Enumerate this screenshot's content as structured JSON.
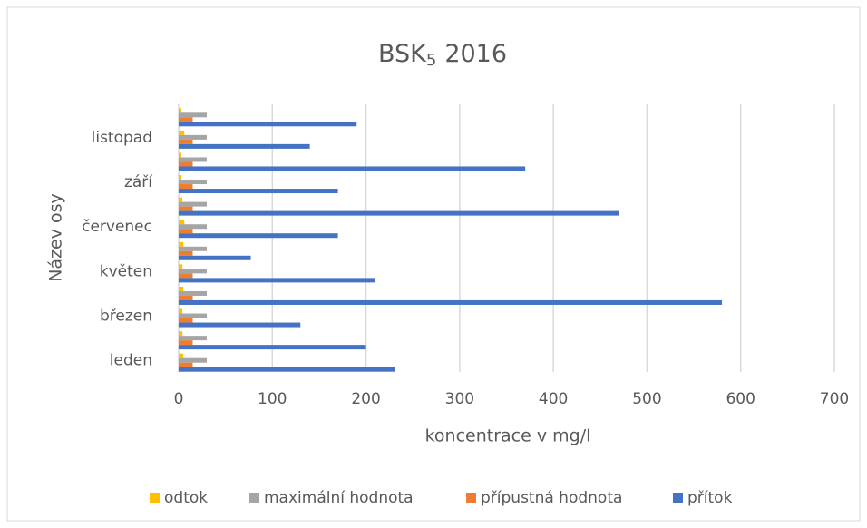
{
  "chart_data": {
    "type": "hbar",
    "title": "BSK",
    "title_subscript": "5",
    "title_suffix": "2016",
    "x_label": "koncentrace v mg/l",
    "y_label": "Název osy",
    "categories": [
      "leden",
      null,
      "březen",
      null,
      "květen",
      null,
      "červenec",
      null,
      "září",
      null,
      "listopad",
      null
    ],
    "series": [
      {
        "name": "odtok",
        "color": "#ffc000",
        "values": [
          5,
          4,
          4,
          5,
          4,
          5,
          6,
          4,
          3,
          3,
          6,
          3
        ]
      },
      {
        "name": "maximální hodnota",
        "color": "#a5a5a5",
        "values": [
          30,
          30,
          30,
          30,
          30,
          30,
          30,
          30,
          30,
          30,
          30,
          30
        ]
      },
      {
        "name": "přípustná hodnota",
        "color": "#ed7d31",
        "values": [
          15,
          15,
          15,
          15,
          15,
          15,
          15,
          15,
          15,
          15,
          15,
          15
        ]
      },
      {
        "name": "přítok",
        "color": "#4472c4",
        "values": [
          231,
          200,
          130,
          580,
          210,
          77,
          170,
          470,
          170,
          370,
          140,
          190
        ]
      }
    ],
    "xlim": [
      0,
      700
    ],
    "xticks": [
      0,
      100,
      200,
      300,
      400,
      500,
      600,
      700
    ],
    "grid": true,
    "legend": "bottom"
  }
}
